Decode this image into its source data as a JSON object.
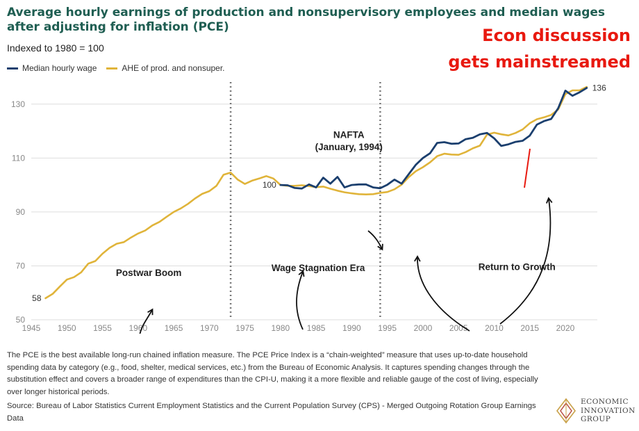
{
  "header": {
    "title": "Average hourly earnings of production and nonsupervisory employees and median wages after adjusting for inflation (PCE)",
    "subtitle": "Indexed to 1980 = 100",
    "callout_line1": "Econ discussion",
    "callout_line2": "gets mainstreamed"
  },
  "legend": {
    "items": [
      {
        "label": "Median hourly wage",
        "color": "#1b3f6e"
      },
      {
        "label": "AHE of prod. and nonsuper.",
        "color": "#e0b43a"
      }
    ]
  },
  "chart_data": {
    "type": "line",
    "xlim": [
      1945,
      2024
    ],
    "ylim": [
      50,
      140
    ],
    "x_ticks": [
      1945,
      1950,
      1955,
      1960,
      1965,
      1970,
      1975,
      1980,
      1985,
      1990,
      1995,
      2000,
      2005,
      2010,
      2015,
      2020
    ],
    "y_ticks": [
      50,
      70,
      90,
      110,
      130
    ],
    "grid": "horizontal",
    "legend_position": "top-left",
    "series": [
      {
        "name": "AHE of prod. and nonsuper.",
        "color": "#e0b43a",
        "points": [
          [
            1947,
            58
          ],
          [
            1948,
            59.6
          ],
          [
            1949,
            62.3
          ],
          [
            1950,
            64.9
          ],
          [
            1951,
            65.8
          ],
          [
            1952,
            67.6
          ],
          [
            1953,
            70.8
          ],
          [
            1954,
            71.8
          ],
          [
            1955,
            74.5
          ],
          [
            1956,
            76.7
          ],
          [
            1957,
            78.2
          ],
          [
            1958,
            78.8
          ],
          [
            1959,
            80.5
          ],
          [
            1960,
            82
          ],
          [
            1961,
            83.1
          ],
          [
            1962,
            85
          ],
          [
            1963,
            86.3
          ],
          [
            1964,
            88.2
          ],
          [
            1965,
            90
          ],
          [
            1966,
            91.3
          ],
          [
            1967,
            93
          ],
          [
            1968,
            95
          ],
          [
            1969,
            96.7
          ],
          [
            1970,
            97.7
          ],
          [
            1971,
            99.7
          ],
          [
            1972,
            103.8
          ],
          [
            1973,
            104.6
          ],
          [
            1974,
            102
          ],
          [
            1975,
            100.4
          ],
          [
            1976,
            101.6
          ],
          [
            1977,
            102.4
          ],
          [
            1978,
            103.3
          ],
          [
            1979,
            102.4
          ],
          [
            1980,
            100
          ],
          [
            1981,
            99.7
          ],
          [
            1982,
            99.7
          ],
          [
            1983,
            99.9
          ],
          [
            1984,
            99.6
          ],
          [
            1985,
            99.2
          ],
          [
            1986,
            99.4
          ],
          [
            1987,
            98.6
          ],
          [
            1988,
            97.9
          ],
          [
            1989,
            97.3
          ],
          [
            1990,
            96.9
          ],
          [
            1991,
            96.6
          ],
          [
            1992,
            96.5
          ],
          [
            1993,
            96.6
          ],
          [
            1994,
            97.1
          ],
          [
            1995,
            97.4
          ],
          [
            1996,
            98.4
          ],
          [
            1997,
            100.1
          ],
          [
            1998,
            102.9
          ],
          [
            1999,
            105.1
          ],
          [
            2000,
            106.6
          ],
          [
            2001,
            108.4
          ],
          [
            2002,
            110.7
          ],
          [
            2003,
            111.6
          ],
          [
            2004,
            111.3
          ],
          [
            2005,
            111.2
          ],
          [
            2006,
            112.2
          ],
          [
            2007,
            113.6
          ],
          [
            2008,
            114.6
          ],
          [
            2009,
            118.7
          ],
          [
            2010,
            119.4
          ],
          [
            2011,
            118.8
          ],
          [
            2012,
            118.4
          ],
          [
            2013,
            119.3
          ],
          [
            2014,
            120.6
          ],
          [
            2015,
            122.9
          ],
          [
            2016,
            124.4
          ],
          [
            2017,
            125.1
          ],
          [
            2018,
            126
          ],
          [
            2019,
            128
          ],
          [
            2020,
            133.7
          ],
          [
            2021,
            135.1
          ],
          [
            2022,
            135.1
          ],
          [
            2023,
            136.4
          ]
        ]
      },
      {
        "name": "Median hourly wage",
        "color": "#1b3f6e",
        "points": [
          [
            1980,
            100
          ],
          [
            1981,
            99.9
          ],
          [
            1982,
            98.9
          ],
          [
            1983,
            98.7
          ],
          [
            1984,
            100.2
          ],
          [
            1985,
            99.1
          ],
          [
            1986,
            102.7
          ],
          [
            1987,
            100.5
          ],
          [
            1988,
            103
          ],
          [
            1989,
            99.1
          ],
          [
            1990,
            100
          ],
          [
            1991,
            100.2
          ],
          [
            1992,
            100.2
          ],
          [
            1993,
            99.1
          ],
          [
            1994,
            98.8
          ],
          [
            1995,
            100.1
          ],
          [
            1996,
            102
          ],
          [
            1997,
            100.5
          ],
          [
            1998,
            104
          ],
          [
            1999,
            107.5
          ],
          [
            2000,
            110
          ],
          [
            2001,
            111.8
          ],
          [
            2002,
            115.6
          ],
          [
            2003,
            115.9
          ],
          [
            2004,
            115.3
          ],
          [
            2005,
            115.4
          ],
          [
            2006,
            117
          ],
          [
            2007,
            117.5
          ],
          [
            2008,
            118.8
          ],
          [
            2009,
            119.3
          ],
          [
            2010,
            117.3
          ],
          [
            2011,
            114.5
          ],
          [
            2012,
            115.1
          ],
          [
            2013,
            116
          ],
          [
            2014,
            116.4
          ],
          [
            2015,
            118.3
          ],
          [
            2016,
            122.4
          ],
          [
            2017,
            123.7
          ],
          [
            2018,
            124.5
          ],
          [
            2019,
            128.5
          ],
          [
            2020,
            135
          ],
          [
            2021,
            133.1
          ],
          [
            2022,
            134.4
          ],
          [
            2023,
            136
          ]
        ]
      }
    ],
    "data_labels": [
      {
        "text": "58",
        "x": 1947,
        "y": 58
      },
      {
        "text": "100",
        "x": 1980,
        "y": 100
      },
      {
        "text": "136",
        "x": 2023,
        "y": 136
      }
    ],
    "reference_lines": [
      {
        "x": 1973,
        "style": "dotted"
      },
      {
        "x": 1994,
        "style": "dotted"
      }
    ],
    "annotations": [
      {
        "text": "Postwar Boom",
        "x": 1961.5,
        "y": 66.2
      },
      {
        "text": "Wage Stagnation Era",
        "x": 1985.3,
        "y": 68
      },
      {
        "text": "NAFTA",
        "x": 1989.6,
        "y": 117.4
      },
      {
        "text": "(January, 1994)",
        "x": 1989.6,
        "y": 112.9
      },
      {
        "text": "Return to Growth",
        "x": 2013.2,
        "y": 68.5
      }
    ]
  },
  "footnote": "The PCE is the best available long-run chained inflation measure. The PCE Price Index is a “chain-weighted” measure that uses up-to-date household spending data by category (e.g., food, shelter, medical services, etc.) from the Bureau of Economic Analysis. It captures spending changes through the substitution effect and covers a broader range of expenditures than the CPI-U, making it a more flexible and reliable gauge of the cost of living, especially over longer historical periods.",
  "source": "Source: Bureau of Labor Statistics Current Employment Statistics and the Current Population Survey (CPS) - Merged Outgoing Rotation Group Earnings Data",
  "logo": {
    "line1": "ECONOMIC",
    "line2": "INNOVATION",
    "line3": "GROUP",
    "colors": {
      "gold": "#c9a24a",
      "red": "#b5473a",
      "dark": "#555555"
    }
  },
  "colors": {
    "title": "#1f5e52",
    "callout": "#e8190f",
    "grid": "#dddddd",
    "ref_line": "#777777",
    "axis_text": "#888888"
  }
}
